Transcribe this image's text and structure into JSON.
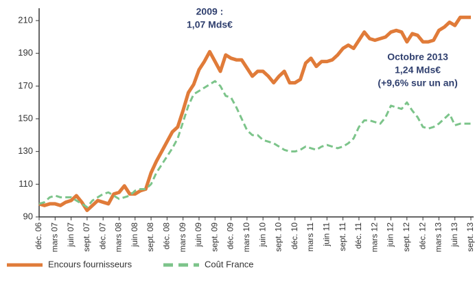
{
  "chart_data": {
    "type": "line",
    "annotations": [
      {
        "lines": [
          "2009 :",
          "1,07 Mds€"
        ],
        "at": 32
      },
      {
        "lines": [
          "Octobre 2013",
          "1,24 Mds€",
          "(+9,6% sur un an)"
        ],
        "at": 70
      }
    ],
    "categories": [
      "déc. 06",
      null,
      null,
      "mars 07",
      null,
      null,
      "juin 07",
      null,
      null,
      "sept. 07",
      null,
      null,
      "déc. 07",
      null,
      null,
      "mars 08",
      null,
      null,
      "juin 08",
      null,
      null,
      "sept. 08",
      null,
      null,
      "déc. 08",
      null,
      null,
      "mars 09",
      null,
      null,
      "juin 09",
      null,
      null,
      "sept. 09",
      null,
      null,
      "déc. 09",
      null,
      null,
      "mars 10",
      null,
      null,
      "juin 10",
      null,
      null,
      "sept. 10",
      null,
      null,
      "déc. 10",
      null,
      null,
      "mars 11",
      null,
      null,
      "juin 11",
      null,
      null,
      "sept. 11",
      null,
      null,
      "déc. 11",
      null,
      null,
      "mars 12",
      null,
      null,
      "juin 12",
      null,
      null,
      "sept. 12",
      null,
      null,
      "déc. 12",
      null,
      null,
      "mars 13",
      null,
      null,
      "juin 13",
      null,
      null,
      "sept. 13"
    ],
    "series": [
      {
        "name": "Encours fournisseurs",
        "color": "#e07b39",
        "dashed": false,
        "values": [
          98,
          97,
          98,
          98,
          97,
          99,
          100,
          103,
          99,
          94,
          97,
          100,
          99,
          98,
          104,
          105,
          109,
          104,
          104,
          106,
          107,
          117,
          124,
          130,
          136,
          142,
          145,
          155,
          166,
          171,
          180,
          185,
          191,
          185,
          179,
          189,
          187,
          186,
          186,
          181,
          176,
          179,
          179,
          176,
          172,
          176,
          179,
          172,
          172,
          174,
          184,
          187,
          182,
          185,
          185,
          186,
          189,
          193,
          195,
          193,
          198,
          203,
          199,
          198,
          199,
          200,
          203,
          204,
          203,
          197,
          202,
          201,
          197,
          197,
          198,
          204,
          206,
          209,
          207,
          212,
          212,
          212
        ]
      },
      {
        "name": "Coût France",
        "color": "#7cc48a",
        "dashed": true,
        "values": [
          98,
          99,
          102,
          103,
          102,
          102,
          102,
          100,
          98,
          96,
          100,
          102,
          104,
          105,
          103,
          101,
          102,
          103,
          106,
          107,
          107,
          110,
          117,
          122,
          127,
          132,
          138,
          148,
          158,
          165,
          167,
          169,
          171,
          173,
          170,
          164,
          163,
          157,
          150,
          143,
          140,
          140,
          137,
          136,
          135,
          133,
          131,
          130,
          130,
          131,
          133,
          132,
          131,
          133,
          134,
          133,
          132,
          133,
          135,
          138,
          145,
          149,
          149,
          148,
          147,
          151,
          158,
          157,
          156,
          160,
          155,
          151,
          145,
          144,
          145,
          147,
          150,
          153,
          146,
          147,
          147,
          147
        ]
      }
    ],
    "ylim": [
      90,
      210
    ],
    "yticks": [
      90,
      110,
      130,
      150,
      170,
      190,
      210
    ],
    "grid": false
  }
}
